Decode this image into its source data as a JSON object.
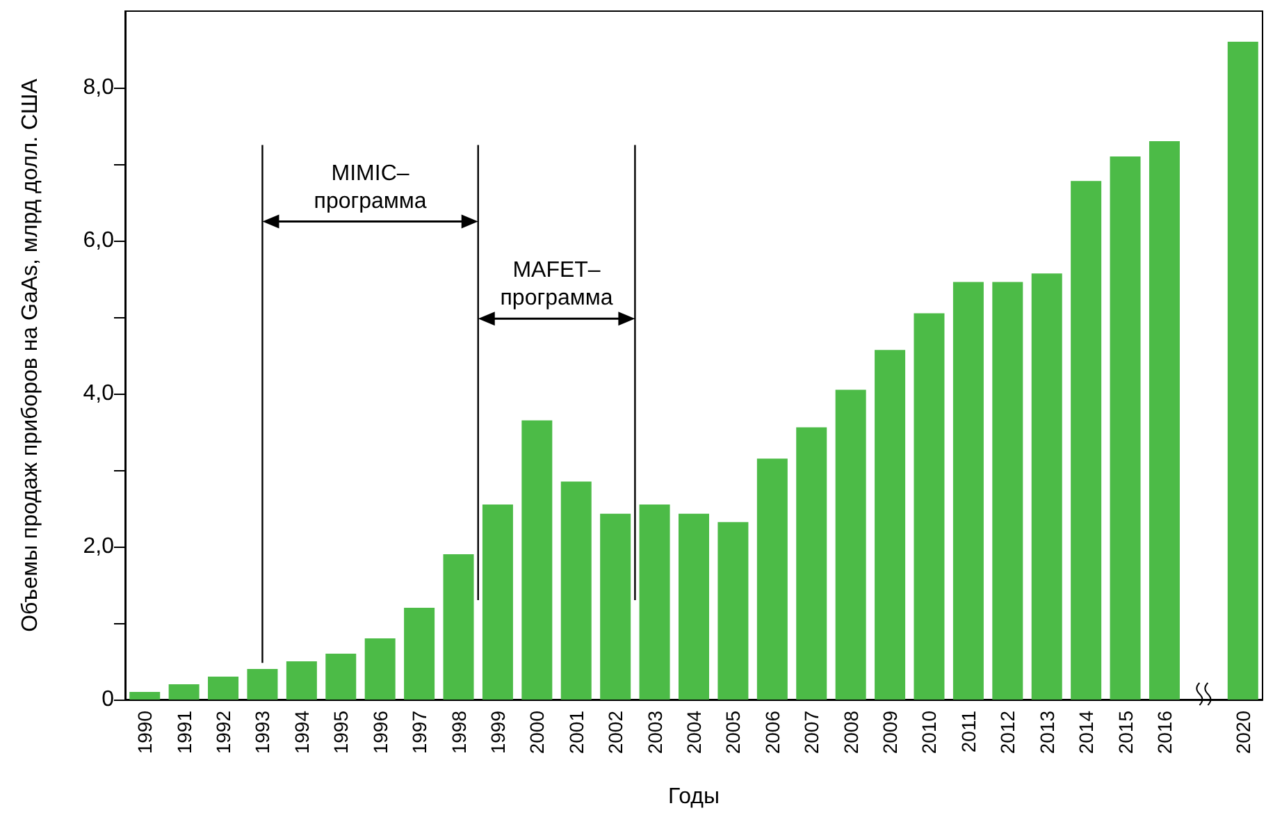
{
  "chart_data": {
    "type": "bar",
    "xlabel": "Годы",
    "ylabel": "Объемы продаж приборов на GaAs, млрд долл. США",
    "categories": [
      "1990",
      "1991",
      "1992",
      "1993",
      "1994",
      "1995",
      "1996",
      "1997",
      "1998",
      "1999",
      "2000",
      "2001",
      "2002",
      "2003",
      "2004",
      "2005",
      "2006",
      "2007",
      "2008",
      "2009",
      "2010",
      "2011",
      "2012",
      "2013",
      "2014",
      "2015",
      "2016",
      null,
      "2020"
    ],
    "values": [
      0.1,
      0.2,
      0.3,
      0.4,
      0.5,
      0.6,
      0.8,
      1.2,
      1.9,
      2.55,
      3.65,
      2.85,
      2.43,
      2.55,
      2.43,
      2.32,
      3.15,
      3.56,
      4.05,
      4.57,
      5.05,
      5.46,
      5.46,
      5.57,
      6.78,
      7.1,
      7.3,
      null,
      8.6
    ],
    "color": "#4cbb47",
    "ylim": [
      0,
      9
    ],
    "yticks": [
      {
        "value": 0,
        "label": "0"
      },
      {
        "value": 1,
        "label": null
      },
      {
        "value": 2,
        "label": "2,0"
      },
      {
        "value": 3,
        "label": null
      },
      {
        "value": 4,
        "label": "4,0"
      },
      {
        "value": 5,
        "label": null
      },
      {
        "value": 6,
        "label": "6,0"
      },
      {
        "value": 7,
        "label": null
      },
      {
        "value": 8,
        "label": "8,0"
      }
    ],
    "annotations": [
      "MIMIC–\nпрограмма",
      "MAFET–\nпрограмма"
    ],
    "grid": false
  }
}
